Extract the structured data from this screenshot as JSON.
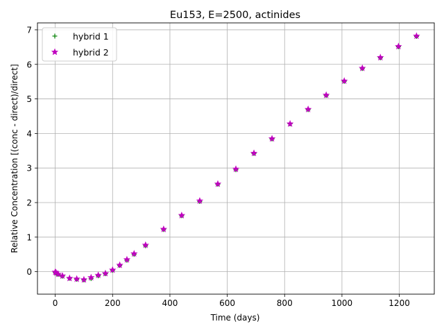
{
  "chart_data": {
    "type": "scatter",
    "title": "Eu153, E=2500, actinides",
    "xlabel": "Time (days)",
    "ylabel": "Relative Concentration [(conc - direct)/direct]",
    "xlim": [
      -62,
      1322
    ],
    "ylim": [
      -0.65,
      7.2
    ],
    "xticks": [
      0,
      200,
      400,
      600,
      800,
      1000,
      1200
    ],
    "yticks": [
      0,
      1,
      2,
      3,
      4,
      5,
      6,
      7
    ],
    "grid": true,
    "legend_position": "top-left",
    "series": [
      {
        "name": "hybrid 1",
        "marker": "plus",
        "color": "#008000",
        "x": [
          0,
          3,
          10,
          25,
          50,
          75,
          100,
          125,
          150,
          175,
          200,
          225,
          250,
          275,
          315,
          378,
          441,
          504,
          567,
          630,
          693,
          756,
          819,
          882,
          945,
          1008,
          1071,
          1134,
          1197,
          1260
        ],
        "y": [
          -0.02,
          -0.04,
          -0.08,
          -0.13,
          -0.19,
          -0.22,
          -0.24,
          -0.2,
          -0.12,
          -0.06,
          0.04,
          0.18,
          0.33,
          0.5,
          0.75,
          1.22,
          1.62,
          2.03,
          2.53,
          2.95,
          3.42,
          3.84,
          4.28,
          4.69,
          5.1,
          5.51,
          5.88,
          6.19,
          6.51,
          6.81
        ]
      },
      {
        "name": "hybrid 2",
        "marker": "star",
        "color": "#bf00bf",
        "x": [
          0,
          3,
          10,
          25,
          50,
          75,
          100,
          125,
          150,
          175,
          200,
          225,
          250,
          275,
          315,
          378,
          441,
          504,
          567,
          630,
          693,
          756,
          819,
          882,
          945,
          1008,
          1071,
          1134,
          1197,
          1260
        ],
        "y": [
          -0.01,
          -0.03,
          -0.07,
          -0.12,
          -0.19,
          -0.21,
          -0.23,
          -0.17,
          -0.1,
          -0.05,
          0.05,
          0.19,
          0.35,
          0.52,
          0.77,
          1.23,
          1.63,
          2.05,
          2.54,
          2.97,
          3.43,
          3.85,
          4.28,
          4.7,
          5.11,
          5.52,
          5.89,
          6.2,
          6.52,
          6.82
        ]
      }
    ]
  }
}
